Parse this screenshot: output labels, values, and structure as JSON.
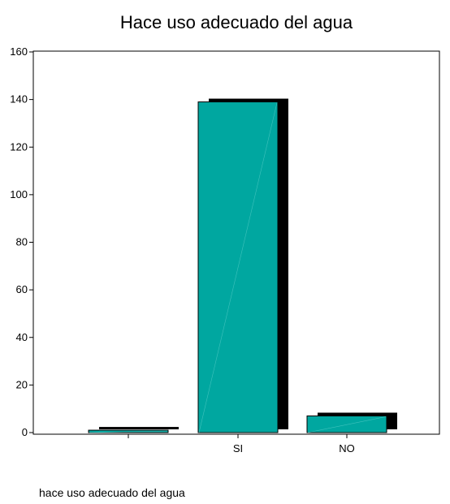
{
  "chart_data": {
    "type": "bar",
    "title": "Hace uso adecuado del agua",
    "xlabel": "hace uso adecuado del agua",
    "ylabel": "",
    "categories": [
      "",
      "SI",
      "NO"
    ],
    "values": [
      1,
      139,
      7
    ],
    "ylim": [
      0,
      160
    ],
    "yticks": [
      0,
      20,
      40,
      60,
      80,
      100,
      120,
      140,
      160
    ],
    "grid": false,
    "bar_color": "#00a7a0",
    "shadow_color": "#000000",
    "axis_color": "#000000"
  }
}
